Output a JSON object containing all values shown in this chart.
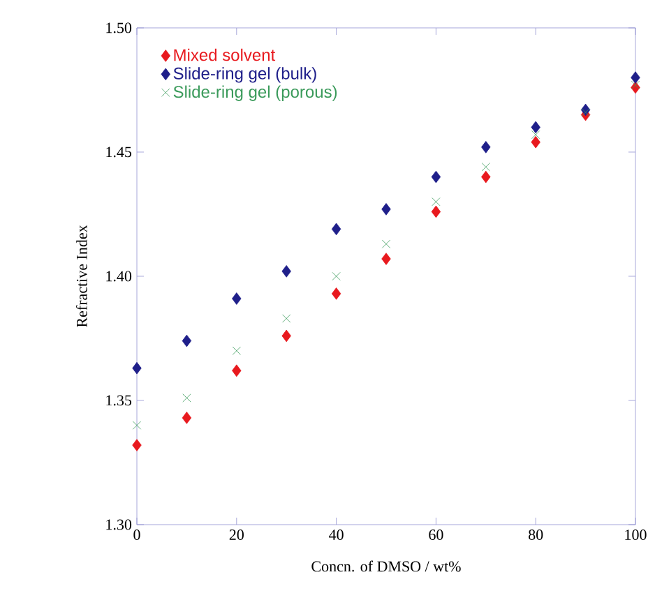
{
  "chart_data": {
    "type": "scatter",
    "xlabel": "Concn. of DMSO / wt%",
    "ylabel": "Refractive Index",
    "x": [
      0,
      10,
      20,
      30,
      40,
      50,
      60,
      70,
      80,
      90,
      100
    ],
    "xlim": [
      0,
      100
    ],
    "xticks": [
      0,
      20,
      40,
      60,
      80,
      100
    ],
    "ylim": [
      1.3,
      1.5
    ],
    "yticks": [
      {
        "value": 1.3,
        "label": "1.30"
      },
      {
        "value": 1.35,
        "label": "1.35"
      },
      {
        "value": 1.4,
        "label": "1.40"
      },
      {
        "value": 1.45,
        "label": "1.45"
      },
      {
        "value": 1.5,
        "label": "1.50"
      }
    ],
    "legend": "top left",
    "series": [
      {
        "name": "Mixed solvent",
        "color": "#e8191e",
        "marker": "diamond",
        "values": [
          1.332,
          1.343,
          1.362,
          1.376,
          1.393,
          1.407,
          1.426,
          1.44,
          1.454,
          1.465,
          1.476
        ]
      },
      {
        "name": "Slide-ring gel (bulk)",
        "color": "#1f1f8a",
        "marker": "diamond",
        "values": [
          1.363,
          1.374,
          1.391,
          1.402,
          1.419,
          1.427,
          1.44,
          1.452,
          1.46,
          1.467,
          1.48
        ]
      },
      {
        "name": "Slide-ring gel (porous)",
        "color": "#3a9a5a",
        "marker": "cross",
        "values": [
          1.34,
          1.351,
          1.37,
          1.383,
          1.4,
          1.413,
          1.43,
          1.444,
          1.457,
          1.466,
          1.477
        ]
      }
    ]
  }
}
